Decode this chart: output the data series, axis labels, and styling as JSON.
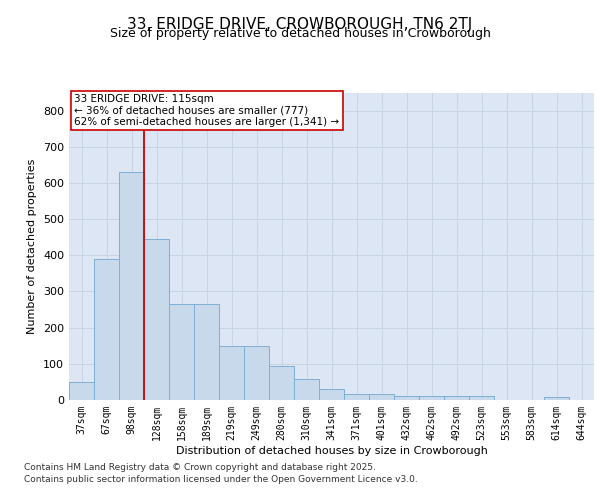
{
  "title_line1": "33, ERIDGE DRIVE, CROWBOROUGH, TN6 2TJ",
  "title_line2": "Size of property relative to detached houses in Crowborough",
  "xlabel": "Distribution of detached houses by size in Crowborough",
  "ylabel": "Number of detached properties",
  "categories": [
    "37sqm",
    "67sqm",
    "98sqm",
    "128sqm",
    "158sqm",
    "189sqm",
    "219sqm",
    "249sqm",
    "280sqm",
    "310sqm",
    "341sqm",
    "371sqm",
    "401sqm",
    "432sqm",
    "462sqm",
    "492sqm",
    "523sqm",
    "553sqm",
    "583sqm",
    "614sqm",
    "644sqm"
  ],
  "bar_values": [
    50,
    390,
    630,
    445,
    265,
    265,
    150,
    150,
    95,
    57,
    30,
    17,
    17,
    12,
    12,
    12,
    12,
    0,
    0,
    7,
    0
  ],
  "bar_color": "#c9d9ec",
  "bar_edgecolor": "#7fafd4",
  "grid_color": "#c8d4e3",
  "background_color": "#dce6f5",
  "vline_x_index": 2.5,
  "vline_color": "#cc0000",
  "annotation_text": "33 ERIDGE DRIVE: 115sqm\n← 36% of detached houses are smaller (777)\n62% of semi-detached houses are larger (1,341) →",
  "annotation_box_color": "#ffffff",
  "annotation_box_edgecolor": "#cc0000",
  "ylim": [
    0,
    850
  ],
  "yticks": [
    0,
    100,
    200,
    300,
    400,
    500,
    600,
    700,
    800
  ],
  "footnote_line1": "Contains HM Land Registry data © Crown copyright and database right 2025.",
  "footnote_line2": "Contains public sector information licensed under the Open Government Licence v3.0.",
  "title_fontsize": 11,
  "subtitle_fontsize": 9,
  "annotation_fontsize": 7.5,
  "footnote_fontsize": 6.5,
  "xlabel_fontsize": 8,
  "ylabel_fontsize": 8,
  "tick_fontsize": 7,
  "ytick_fontsize": 8
}
